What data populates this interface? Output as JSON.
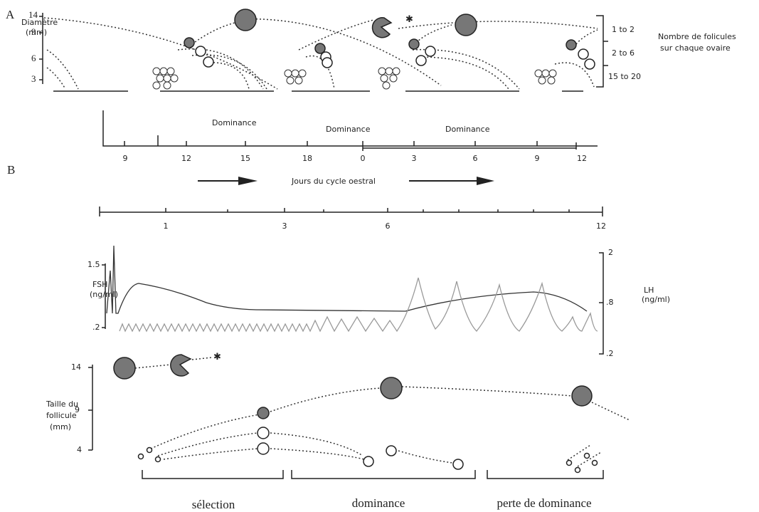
{
  "panel_a": {
    "letter": "A",
    "y_label_1": "Diamètre",
    "y_label_2": "(mm)",
    "y_ticks": [
      "14",
      "9",
      "6",
      "3"
    ],
    "count_labels": [
      "1 to 2",
      "2 to 6",
      "15 to 20"
    ],
    "count_title_1": "Nombre de folicules",
    "count_title_2": "sur chaque ovaire",
    "phases": [
      "Dominance",
      "Dominance",
      "Dominance"
    ],
    "day_ticks": [
      "9",
      "12",
      "15",
      "18",
      "0",
      "3",
      "6",
      "9",
      "12"
    ]
  },
  "panel_b": {
    "letter": "B",
    "x_title": "Jours du cycle oestral",
    "scale_ticks": [
      "1",
      "3",
      "6",
      "12"
    ],
    "fsh_label": "FSH",
    "fsh_unit": "(ng/ml)",
    "fsh_ticks": [
      "1.5",
      ".2"
    ],
    "lh_label": "LH",
    "lh_unit": "(ng/ml)",
    "lh_ticks": [
      "2",
      ".8",
      ".2"
    ],
    "size_label_1": "Taille du",
    "size_label_2": "follicule",
    "size_label_3": "(mm)",
    "size_ticks": [
      "14",
      "9",
      "4"
    ],
    "phases": [
      "sélection",
      "dominance",
      "perte de dominance"
    ]
  }
}
